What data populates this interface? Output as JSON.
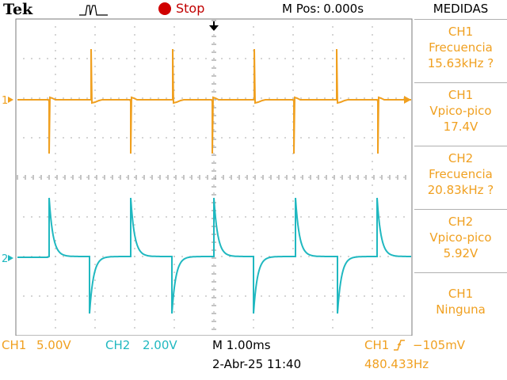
{
  "header": {
    "brand": "Tek",
    "acq_state": "Stop",
    "mpos_label": "M Pos:",
    "mpos_value": "0.000s"
  },
  "measurements": {
    "title": "MEDIDAS",
    "items": [
      {
        "source": "CH1",
        "name": "Frecuencia",
        "value": "15.63kHz ?"
      },
      {
        "source": "CH1",
        "name": "Vpico-pico",
        "value": "17.4V"
      },
      {
        "source": "CH2",
        "name": "Frecuencia",
        "value": "20.83kHz ?"
      },
      {
        "source": "CH2",
        "name": "Vpico-pico",
        "value": "5.92V"
      },
      {
        "source": "CH1",
        "name": "Ninguna",
        "value": ""
      }
    ]
  },
  "footer": {
    "ch1_label": "CH1",
    "ch1_scale": "5.00V",
    "ch2_label": "CH2",
    "ch2_scale": "2.00V",
    "timebase": "M 1.00ms",
    "trigger_source": "CH1",
    "trigger_level": "−105mV",
    "date_time": "2-Abr-25 11:40",
    "trigger_freq": "480.433Hz"
  },
  "channel_markers": {
    "ch1": "1",
    "ch2": "2"
  },
  "colors": {
    "ch1": "#f0a020",
    "ch2": "#20b8c0",
    "stop": "#d00000",
    "grid": "#8a8a8a"
  }
}
